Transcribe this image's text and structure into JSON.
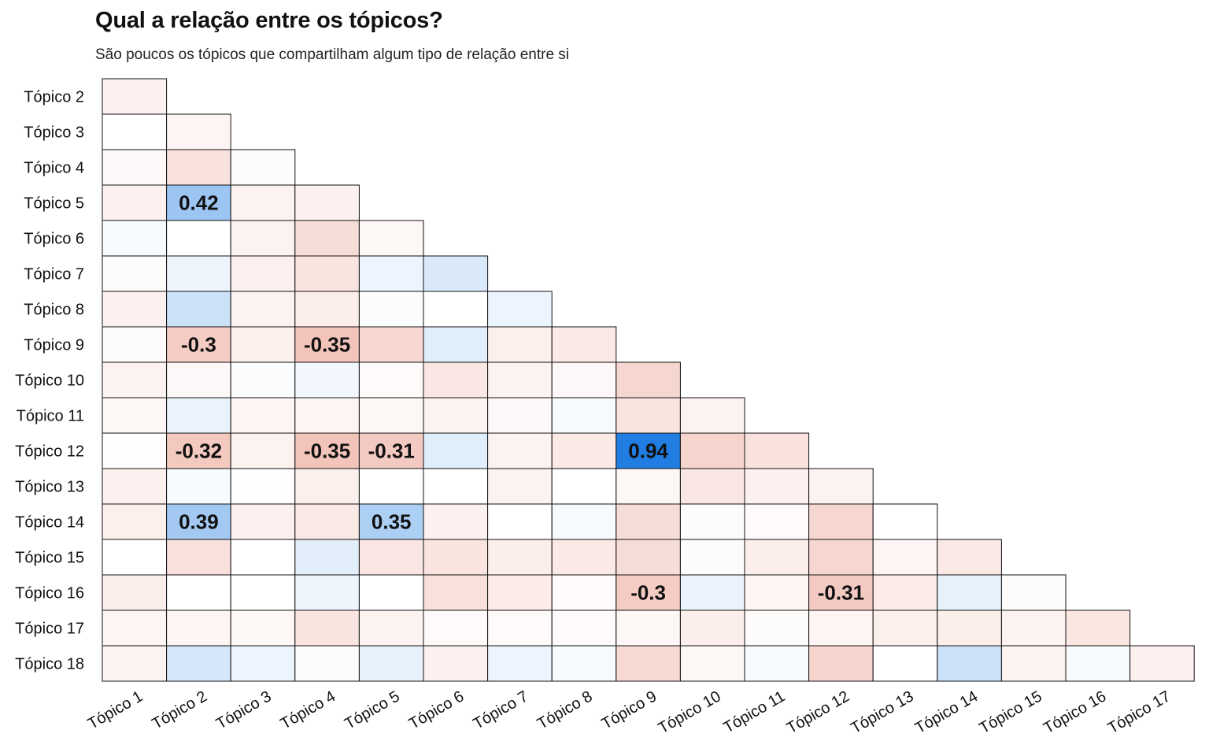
{
  "header": {
    "title": "Qual a relação entre os tópicos?",
    "subtitle": "São poucos os tópicos que compartilham algum tipo de relação entre si"
  },
  "chart_data": {
    "type": "heatmap",
    "title": "Qual a relação entre os tópicos?",
    "subtitle": "São poucos os tópicos que compartilham algum tipo de relação entre si",
    "x_labels": [
      "Tópico 1",
      "Tópico 2",
      "Tópico 3",
      "Tópico 4",
      "Tópico 5",
      "Tópico 6",
      "Tópico 7",
      "Tópico 8",
      "Tópico 9",
      "Tópico 10",
      "Tópico 11",
      "Tópico 12",
      "Tópico 13",
      "Tópico 14",
      "Tópico 15",
      "Tópico 16",
      "Tópico 17"
    ],
    "y_labels": [
      "Tópico 2",
      "Tópico 3",
      "Tópico 4",
      "Tópico 5",
      "Tópico 6",
      "Tópico 7",
      "Tópico 8",
      "Tópico 9",
      "Tópico 10",
      "Tópico 11",
      "Tópico 12",
      "Tópico 13",
      "Tópico 14",
      "Tópico 15",
      "Tópico 16",
      "Tópico 17",
      "Tópico 18"
    ],
    "matrix": [
      [
        -0.08
      ],
      [
        0.0,
        -0.06
      ],
      [
        -0.04,
        -0.18,
        0.02
      ],
      [
        -0.08,
        0.42,
        -0.07,
        -0.08
      ],
      [
        0.03,
        0.0,
        -0.07,
        -0.2,
        -0.05
      ],
      [
        -0.02,
        0.07,
        -0.08,
        -0.16,
        0.08,
        0.16
      ],
      [
        -0.08,
        0.22,
        -0.07,
        -0.1,
        0.02,
        0.0,
        0.08
      ],
      [
        -0.02,
        -0.3,
        -0.09,
        -0.35,
        -0.24,
        0.13,
        -0.09,
        -0.13
      ],
      [
        -0.07,
        -0.04,
        0.02,
        0.06,
        -0.03,
        -0.14,
        -0.07,
        -0.04,
        -0.24
      ],
      [
        -0.05,
        0.09,
        -0.06,
        -0.06,
        -0.05,
        -0.07,
        -0.04,
        0.03,
        -0.16,
        -0.07
      ],
      [
        -0.01,
        -0.32,
        -0.07,
        -0.35,
        -0.31,
        0.13,
        -0.07,
        -0.13,
        0.94,
        -0.25,
        -0.17
      ],
      [
        -0.08,
        0.03,
        -0.01,
        -0.09,
        0.0,
        0.0,
        -0.07,
        0.0,
        -0.05,
        -0.14,
        -0.08,
        -0.07
      ],
      [
        -0.09,
        0.39,
        -0.08,
        -0.13,
        0.35,
        -0.08,
        0.0,
        0.04,
        -0.2,
        -0.02,
        -0.03,
        -0.24,
        0.0
      ],
      [
        0.0,
        -0.18,
        0.0,
        0.12,
        -0.14,
        -0.16,
        -0.1,
        -0.13,
        -0.2,
        -0.02,
        -0.1,
        -0.24,
        -0.06,
        -0.13
      ],
      [
        -0.1,
        0.0,
        0.0,
        0.07,
        0.0,
        -0.18,
        -0.11,
        -0.03,
        -0.3,
        0.09,
        -0.06,
        -0.31,
        -0.12,
        0.1,
        -0.02
      ],
      [
        -0.06,
        -0.06,
        -0.05,
        -0.16,
        -0.07,
        -0.03,
        -0.03,
        -0.03,
        -0.05,
        -0.1,
        -0.02,
        -0.06,
        -0.09,
        -0.1,
        -0.07,
        -0.15
      ],
      [
        -0.07,
        0.18,
        0.08,
        -0.02,
        0.1,
        -0.08,
        0.08,
        0.03,
        -0.22,
        -0.05,
        0.03,
        -0.25,
        0.0,
        0.22,
        -0.07,
        0.03,
        -0.08
      ]
    ],
    "color_scale": {
      "negative": "#d9553a",
      "zero": "#ffffff",
      "positive": "#1375e0",
      "range": [
        -1,
        1
      ]
    },
    "label_threshold": 0.3,
    "grid": false,
    "legend": "none"
  }
}
